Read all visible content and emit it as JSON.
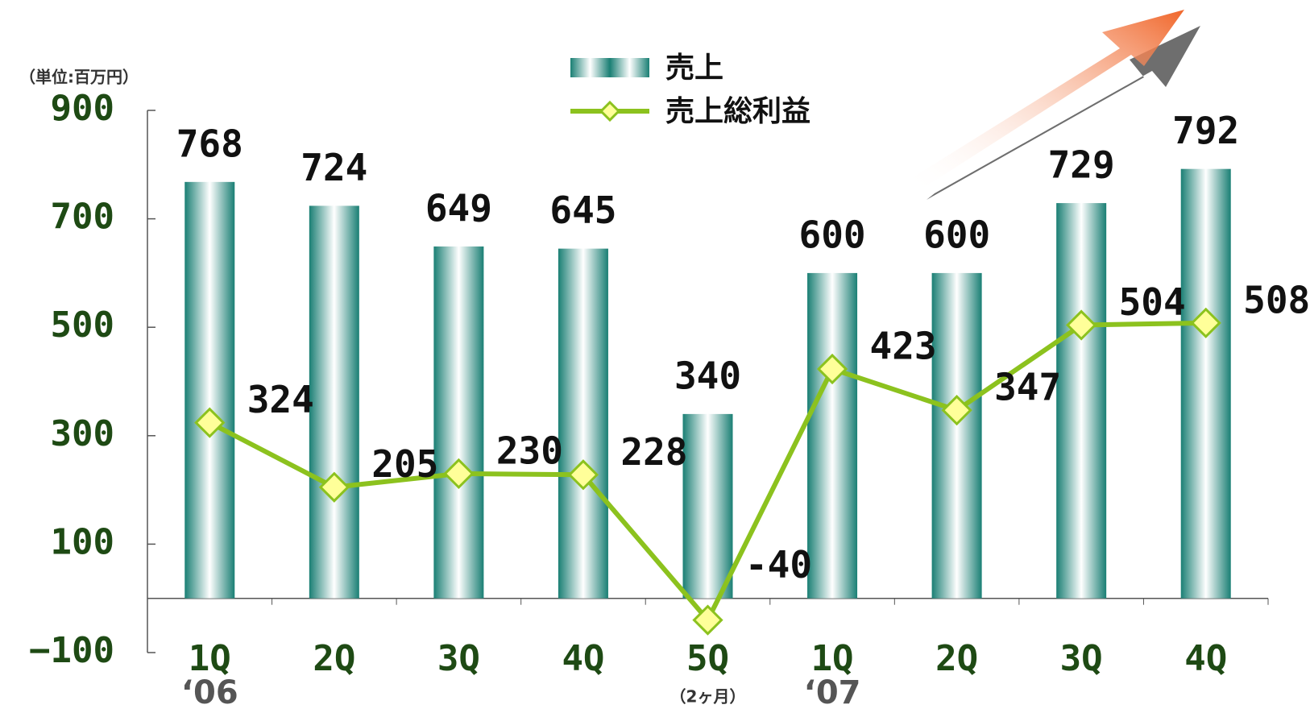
{
  "chart_data": {
    "type": "bar-line",
    "unit_label": "（単位:百万円）",
    "categories": [
      "1Q",
      "2Q",
      "3Q",
      "4Q",
      "5Q",
      "1Q",
      "2Q",
      "3Q",
      "4Q"
    ],
    "x_sublabels": [
      "‘06",
      null,
      null,
      null,
      "（2ヶ月）",
      "‘07",
      null,
      null,
      null
    ],
    "series": [
      {
        "name": "売上",
        "type": "bar",
        "color": "#1a7f74",
        "values": [
          768,
          724,
          649,
          645,
          340,
          600,
          600,
          729,
          792
        ]
      },
      {
        "name": "売上総利益",
        "type": "line",
        "color": "#8cc21e",
        "marker_color": "#ffff99",
        "values": [
          324,
          205,
          230,
          228,
          -40,
          423,
          347,
          504,
          508
        ]
      }
    ],
    "ylim": [
      -100,
      900
    ],
    "yticks": [
      {
        "value": -100,
        "label": "−100"
      },
      100,
      300,
      500,
      700,
      900
    ]
  }
}
